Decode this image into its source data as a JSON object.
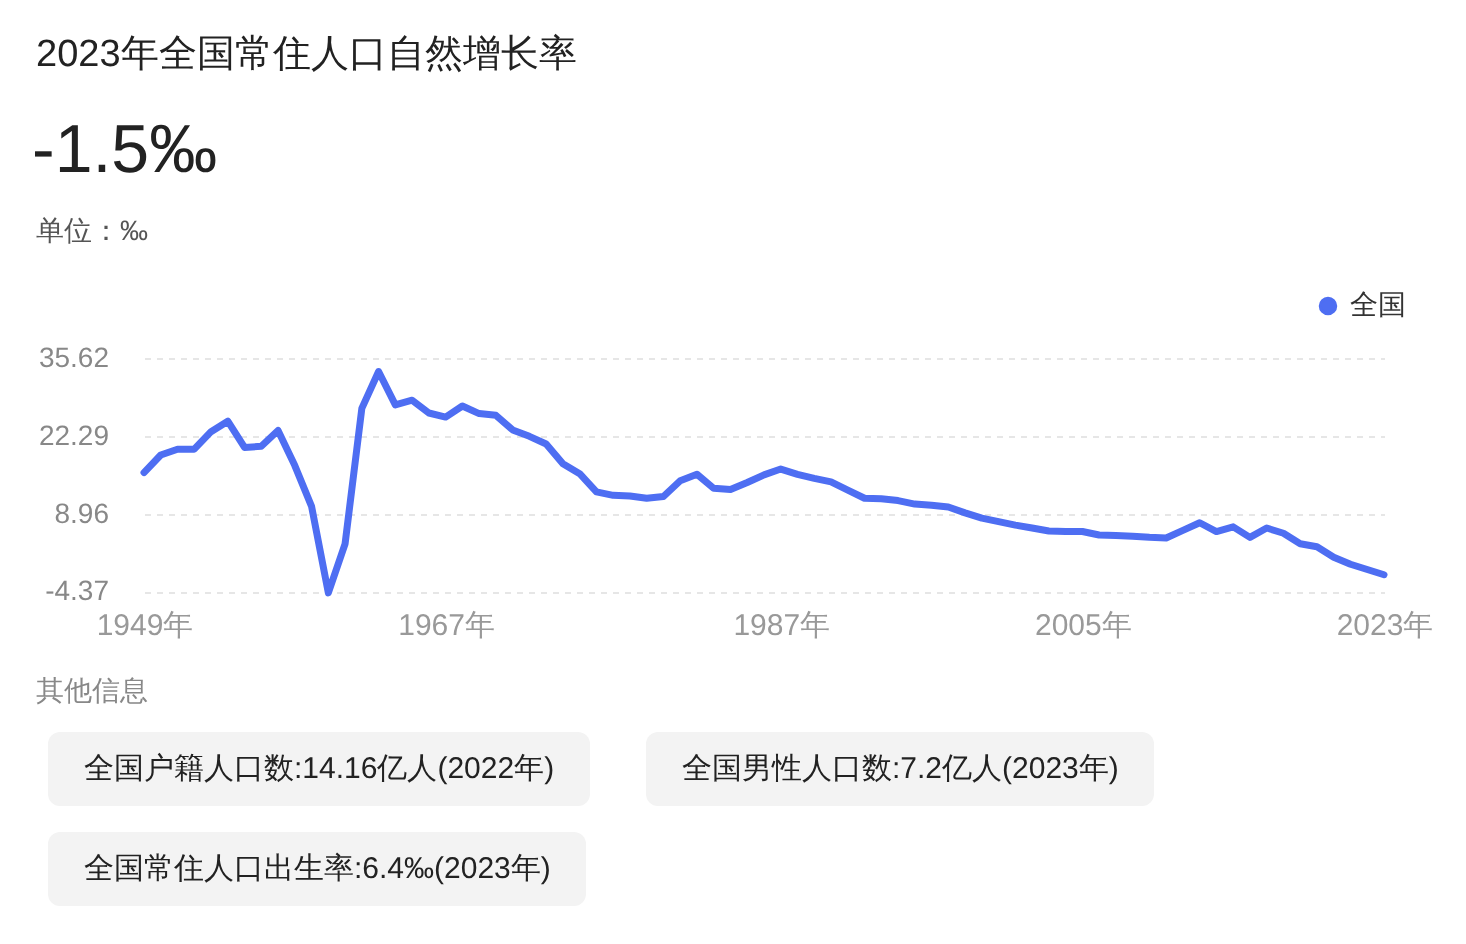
{
  "chart_data": {
    "type": "line",
    "title": "2023年全国常住人口自然增长率",
    "annotations": [
      "-1.5‰",
      "单位：‰",
      "其他信息",
      "全国户籍人口数:14.16亿人(2022年)",
      "全国男性人口数:7.2亿人(2023年)",
      "全国常住人口出生率:6.4‰(2023年)"
    ],
    "categories": [
      "1949年",
      null,
      null,
      null,
      null,
      null,
      null,
      null,
      null,
      null,
      null,
      null,
      null,
      null,
      null,
      null,
      null,
      null,
      "1967年",
      null,
      null,
      null,
      null,
      null,
      null,
      null,
      null,
      null,
      null,
      null,
      null,
      null,
      null,
      null,
      null,
      null,
      null,
      null,
      "1987年",
      null,
      null,
      null,
      null,
      null,
      null,
      null,
      null,
      null,
      null,
      null,
      null,
      null,
      null,
      null,
      null,
      null,
      "2005年",
      null,
      null,
      null,
      null,
      null,
      null,
      null,
      null,
      null,
      null,
      null,
      null,
      null,
      null,
      null,
      null,
      null,
      "2023年"
    ],
    "series": [
      {
        "name": "全国",
        "color": "#4e6ef2",
        "values": [
          16,
          19,
          20,
          20,
          23,
          24.8,
          20.3,
          20.5,
          23.2,
          17.2,
          10.2,
          -4.6,
          3.8,
          27,
          33.3,
          27.6,
          28.4,
          26.2,
          25.5,
          27.4,
          26.1,
          25.8,
          23.3,
          22.2,
          20.9,
          17.5,
          15.8,
          12.7,
          12.1,
          12,
          11.6,
          11.9,
          14.6,
          15.7,
          13.3,
          13.1,
          14.3,
          15.6,
          16.6,
          15.7,
          15,
          14.4,
          13,
          11.6,
          11.5,
          11.2,
          10.6,
          10.4,
          10.1,
          9.1,
          8.2,
          7.6,
          7,
          6.5,
          6,
          5.9,
          5.9,
          5.3,
          5.2,
          5.1,
          4.9,
          4.8,
          6.1,
          7.4,
          5.9,
          6.7,
          4.9,
          6.5,
          5.6,
          3.8,
          3.3,
          1.5,
          0.3,
          -0.6,
          -1.5
        ]
      }
    ],
    "ylim": [
      -4.8,
      35.62
    ],
    "yticks": [
      -4.37,
      8.96,
      22.29,
      35.62
    ],
    "grid": "y",
    "legend": "top right",
    "marker": "none",
    "line_style": "solid"
  }
}
